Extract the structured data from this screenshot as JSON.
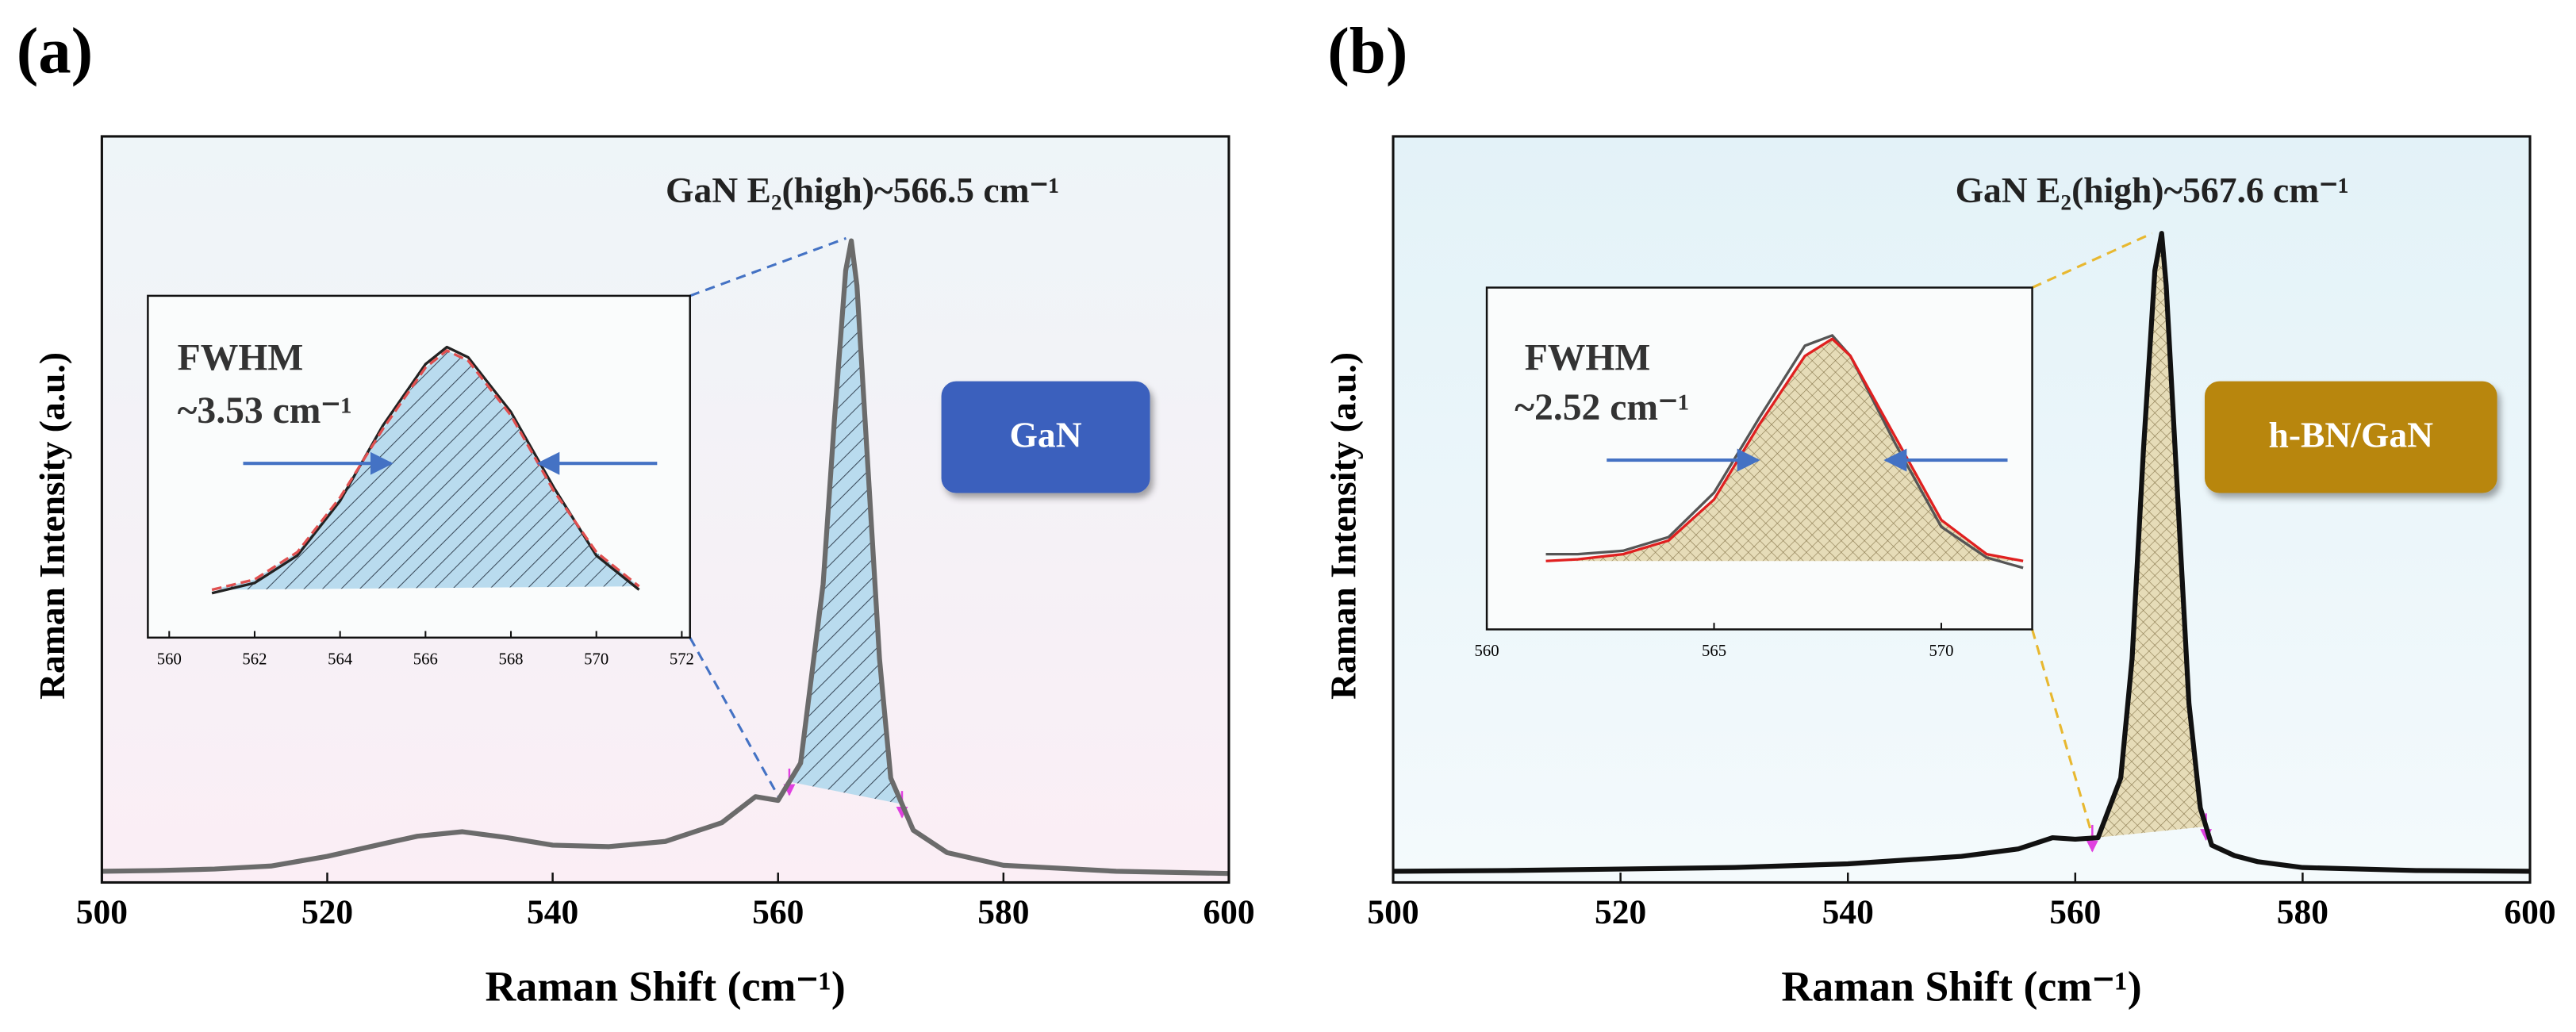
{
  "chart_data": [
    {
      "type": "line",
      "panel_label": "(a)",
      "xlabel": "Raman Shift (cm⁻¹)",
      "ylabel": "Raman Intensity (a.u.)",
      "xlim": [
        500,
        600
      ],
      "xticks": [
        500,
        520,
        540,
        560,
        580,
        600
      ],
      "ylim": [
        0,
        100
      ],
      "x": [
        500,
        505,
        510,
        515,
        520,
        525,
        528,
        532,
        536,
        540,
        545,
        550,
        555,
        558,
        560,
        562,
        564,
        565,
        566,
        566.5,
        567,
        568,
        569,
        570,
        572,
        575,
        580,
        590,
        600
      ],
      "series": [
        {
          "color": "#6b6b6b",
          "values": [
            1.5,
            1.6,
            1.8,
            2.2,
            3.5,
            5.2,
            6.2,
            6.8,
            6,
            5,
            4.8,
            5.5,
            8,
            11.5,
            11,
            16,
            40,
            62,
            82,
            86,
            80,
            55,
            30,
            14,
            7,
            4,
            2.3,
            1.5,
            1.2
          ]
        }
      ],
      "shaded_range": [
        561,
        571
      ],
      "shade_color": "#b9dbee",
      "shade_pattern": "hatch",
      "annotation": "GaN E₂(high)~566.5 cm⁻¹",
      "badge": {
        "text": "GaN",
        "color": "#3a60bd"
      },
      "inset": {
        "type": "line",
        "xlim": [
          560,
          572
        ],
        "xticks": [
          560,
          562,
          564,
          566,
          568,
          570,
          572
        ],
        "ylim": [
          0,
          100
        ],
        "x": [
          561,
          562,
          563,
          564,
          565,
          566,
          566.5,
          567,
          568,
          569,
          570,
          571
        ],
        "series": [
          {
            "color": "#222222",
            "values": [
              13,
              16,
              24,
              40,
              62,
              80,
              85,
              82,
              66,
              44,
              24,
              14
            ]
          },
          {
            "color": "#e05050",
            "dash": true,
            "values": [
              14,
              17,
              25,
              41,
              61,
              79,
              84,
              81,
              65,
              43,
              25,
              15
            ]
          }
        ],
        "fill_color": "#b9dbee",
        "fwhm_label": "FWHM",
        "fwhm_value": "~3.53 cm⁻¹"
      }
    },
    {
      "type": "line",
      "panel_label": "(b)",
      "xlabel": "Raman Shift (cm⁻¹)",
      "ylabel": "Raman Intensity (a.u.)",
      "xlim": [
        500,
        600
      ],
      "xticks": [
        500,
        520,
        540,
        560,
        580,
        600
      ],
      "ylim": [
        0,
        100
      ],
      "x": [
        500,
        510,
        520,
        530,
        540,
        545,
        550,
        555,
        558,
        560,
        562,
        564,
        565,
        566,
        567,
        567.6,
        568,
        569,
        570,
        571,
        572,
        574,
        576,
        580,
        590,
        600
      ],
      "series": [
        {
          "color": "#111111",
          "values": [
            1.5,
            1.6,
            1.8,
            2,
            2.5,
            3,
            3.5,
            4.5,
            6,
            5.8,
            6,
            14,
            30,
            58,
            82,
            87,
            80,
            52,
            24,
            10,
            5,
            3.6,
            2.8,
            2,
            1.6,
            1.5
          ]
        }
      ],
      "shaded_range": [
        561.5,
        571.5
      ],
      "shade_color": "#e6dcb8",
      "shade_pattern": "crosshatch",
      "annotation": "GaN E₂(high)~567.6 cm⁻¹",
      "badge": {
        "text": "h-BN/GaN",
        "color": "#b8860b"
      },
      "inset": {
        "type": "line",
        "xlim": [
          560,
          572
        ],
        "xticks": [
          560,
          565,
          570
        ],
        "ylim": [
          0,
          100
        ],
        "x": [
          561.3,
          562,
          563,
          564,
          565,
          566,
          567,
          567.6,
          568,
          569,
          570,
          571,
          571.8
        ],
        "series": [
          {
            "color": "#555555",
            "values": [
              22,
              22,
              23,
              27,
              40,
              62,
              83,
              86,
              80,
              54,
              30,
              21,
              18
            ]
          },
          {
            "color": "#e02020",
            "values": [
              20,
              20.5,
              22,
              26,
              38,
              60,
              80,
              85,
              80,
              56,
              32,
              22,
              20
            ]
          }
        ],
        "fill_color": "#e6dcb8",
        "fwhm_label": "FWHM",
        "fwhm_value": "~2.52 cm⁻¹"
      }
    }
  ]
}
